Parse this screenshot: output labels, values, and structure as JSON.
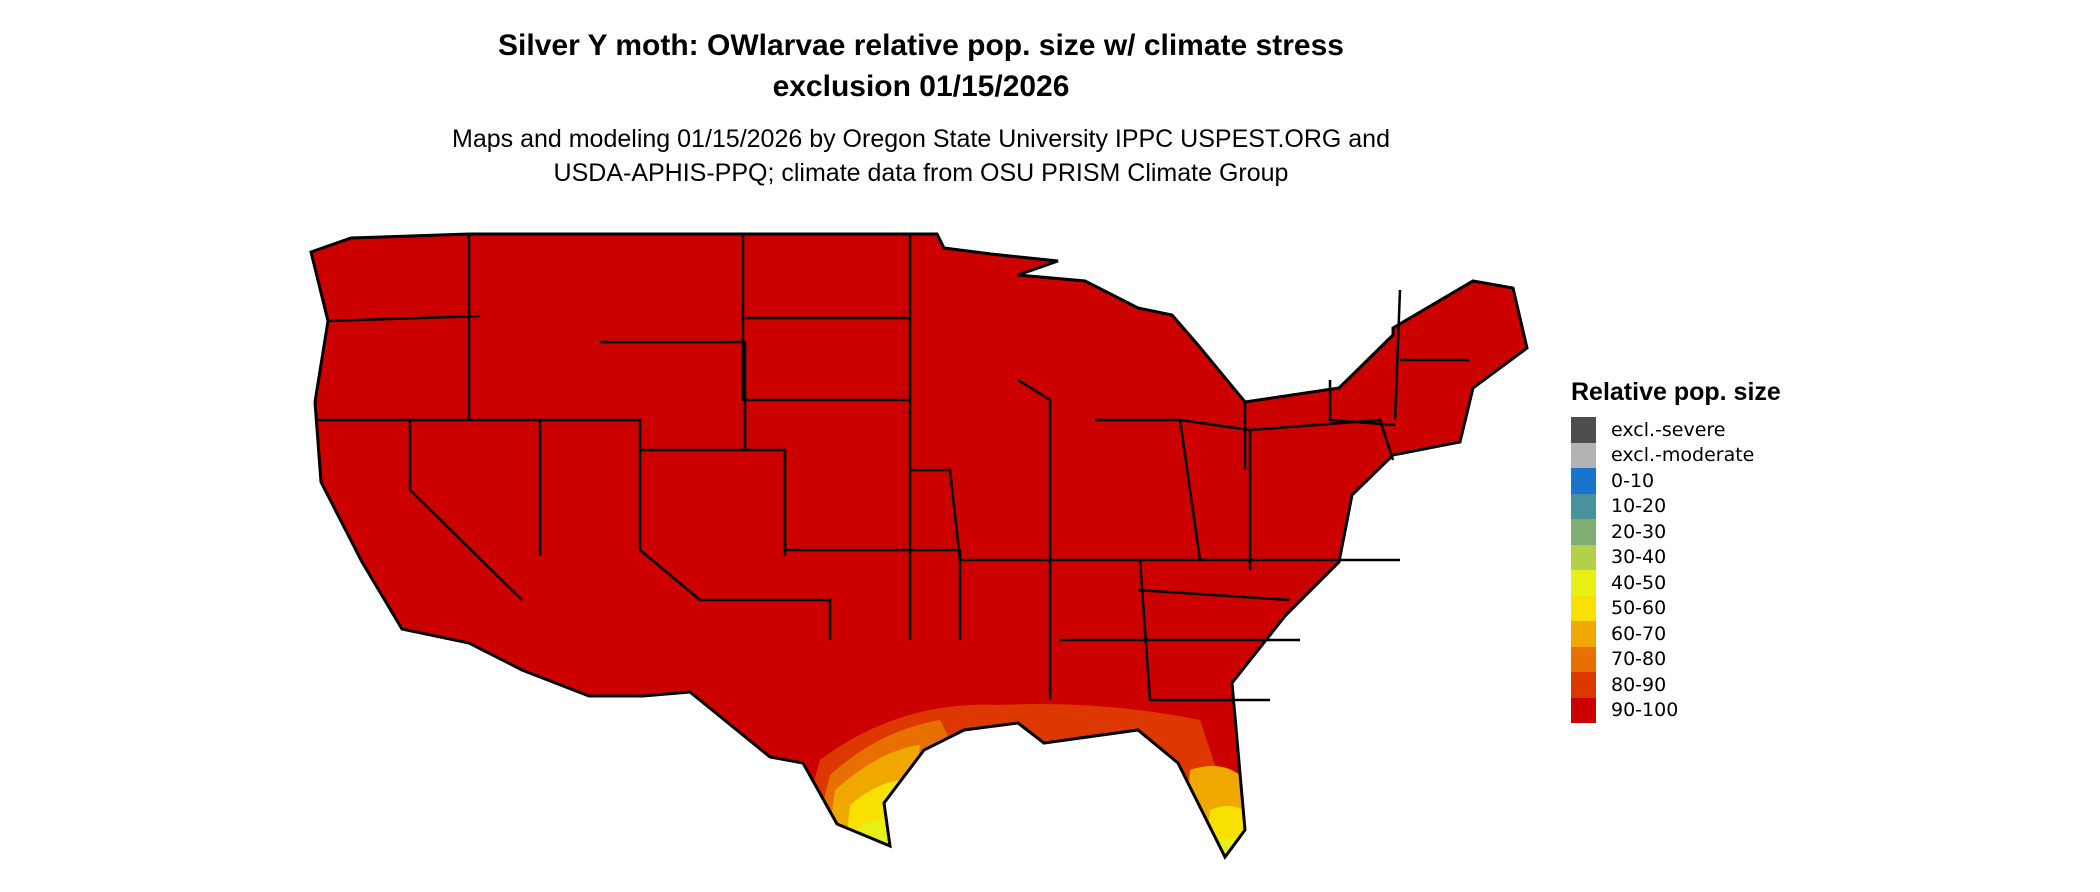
{
  "title_line1": "Silver Y moth: OWlarvae relative pop. size w/ climate stress",
  "title_line2": "exclusion 01/15/2026",
  "subtitle_line1": "Maps and modeling 01/15/2026 by Oregon State University IPPC USPEST.ORG and",
  "subtitle_line2": "USDA-APHIS-PPQ; climate data from OSU PRISM Climate Group",
  "map": {
    "region": "Contiguous United States",
    "dominant_class": "90-100",
    "notes_visible": "Gulf coast and Florida show lower classes (80-90 to 40-50)"
  },
  "legend": {
    "title": "Relative pop. size",
    "items": [
      {
        "label": "excl.-severe",
        "color": "#4d4d4d"
      },
      {
        "label": "excl.-moderate",
        "color": "#b3b3b3"
      },
      {
        "label": "0-10",
        "color": "#1874cd"
      },
      {
        "label": "10-20",
        "color": "#4a919e"
      },
      {
        "label": "20-30",
        "color": "#7fae74"
      },
      {
        "label": "30-40",
        "color": "#b2d048"
      },
      {
        "label": "40-50",
        "color": "#e6f014"
      },
      {
        "label": "50-60",
        "color": "#f8e000"
      },
      {
        "label": "60-70",
        "color": "#f0a800"
      },
      {
        "label": "70-80",
        "color": "#e87000"
      },
      {
        "label": "80-90",
        "color": "#dc3800"
      },
      {
        "label": "90-100",
        "color": "#cd0000"
      }
    ]
  }
}
